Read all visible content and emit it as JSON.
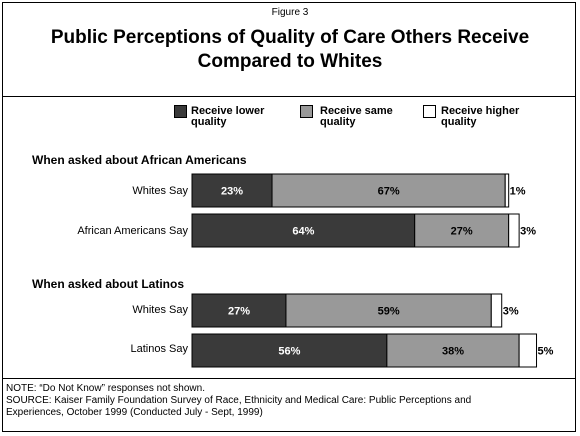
{
  "figure_label": "Figure 3",
  "notes": {
    "note": "NOTE: “Do Not Know” responses not shown.",
    "source_line1": "SOURCE: Kaiser Family Foundation Survey of Race, Ethnicity and Medical Care:  Public Perceptions and",
    "source_line2": "Experiences, October 1999 (Conducted July - Sept, 1999)"
  },
  "colors": {
    "lower": "#3a3a3a",
    "same": "#999999",
    "higher": "#ffffff",
    "border": "#000000"
  },
  "chart_data": {
    "type": "bar",
    "orientation": "horizontal",
    "stacked": true,
    "title_line1": "Public Perceptions of Quality of Care Others Receive",
    "title_line2": "Compared to Whites",
    "legend": {
      "position": "top",
      "entries": [
        {
          "key": "lower",
          "line1": "Receive lower",
          "line2": "quality"
        },
        {
          "key": "same",
          "line1": "Receive same",
          "line2": "quality"
        },
        {
          "key": "higher",
          "line1": "Receive higher",
          "line2": "quality"
        }
      ]
    },
    "xlim": [
      0,
      100
    ],
    "groups": [
      {
        "title": "When asked about African Americans",
        "rows": [
          {
            "label": "Whites Say",
            "lower": 23,
            "same": 67,
            "higher": 1,
            "labels": {
              "lower": "23%",
              "same": "67%",
              "higher": "1%"
            }
          },
          {
            "label": "African Americans Say",
            "lower": 64,
            "same": 27,
            "higher": 3,
            "labels": {
              "lower": "64%",
              "same": "27%",
              "higher": "3%"
            }
          }
        ]
      },
      {
        "title": "When asked about Latinos",
        "rows": [
          {
            "label": "Whites Say",
            "lower": 27,
            "same": 59,
            "higher": 3,
            "labels": {
              "lower": "27%",
              "same": "59%",
              "higher": "3%"
            }
          },
          {
            "label": "Latinos Say",
            "lower": 56,
            "same": 38,
            "higher": 5,
            "labels": {
              "lower": "56%",
              "same": "38%",
              "higher": "5%"
            }
          }
        ]
      }
    ]
  }
}
